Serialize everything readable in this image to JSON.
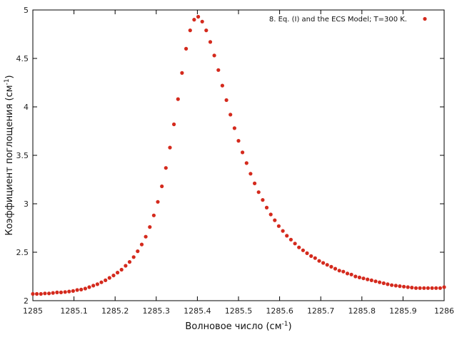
{
  "chart_data": {
    "type": "scatter",
    "xlabel": {
      "main": "Волновое число (см",
      "sup": "-1",
      "close": ")"
    },
    "ylabel": {
      "main": "Коэффициент поглощения (см",
      "sup": "-1",
      "close": ")"
    },
    "xlim": [
      1285,
      1286
    ],
    "ylim": [
      2,
      5
    ],
    "xticks": [
      "1285",
      "1285.1",
      "1285.2",
      "1285.3",
      "1285.4",
      "1285.5",
      "1285.6",
      "1285.7",
      "1285.8",
      "1285.9",
      "1286"
    ],
    "yticks": [
      "2",
      "2.5",
      "3",
      "3.5",
      "4",
      "4.5",
      "5"
    ],
    "legend_position": "top-right",
    "grid": false,
    "series": [
      {
        "name": "8. Eq. (I) and the ECS Model; T=300 K.",
        "color": "#d42a1d",
        "x": [
          1285.0,
          1285.0098,
          1285.0196,
          1285.0294,
          1285.0392,
          1285.049,
          1285.0588,
          1285.0686,
          1285.0784,
          1285.0882,
          1285.098,
          1285.1078,
          1285.1176,
          1285.1274,
          1285.1372,
          1285.147,
          1285.1569,
          1285.1667,
          1285.1765,
          1285.1863,
          1285.1961,
          1285.2059,
          1285.2157,
          1285.2255,
          1285.2353,
          1285.2451,
          1285.2549,
          1285.2647,
          1285.2745,
          1285.2843,
          1285.2941,
          1285.3039,
          1285.3137,
          1285.3235,
          1285.3333,
          1285.3431,
          1285.3529,
          1285.3627,
          1285.3725,
          1285.3824,
          1285.3922,
          1285.402,
          1285.4118,
          1285.4216,
          1285.4314,
          1285.4412,
          1285.451,
          1285.4608,
          1285.4706,
          1285.4804,
          1285.4902,
          1285.5,
          1285.5098,
          1285.5196,
          1285.5294,
          1285.5392,
          1285.549,
          1285.5588,
          1285.5686,
          1285.5784,
          1285.5882,
          1285.598,
          1285.6078,
          1285.6176,
          1285.6275,
          1285.6373,
          1285.6471,
          1285.6569,
          1285.6667,
          1285.6765,
          1285.6863,
          1285.6961,
          1285.7059,
          1285.7157,
          1285.7255,
          1285.7353,
          1285.7451,
          1285.7549,
          1285.7647,
          1285.7745,
          1285.7843,
          1285.7941,
          1285.8039,
          1285.8137,
          1285.8235,
          1285.8333,
          1285.8431,
          1285.8529,
          1285.8627,
          1285.8725,
          1285.8824,
          1285.8922,
          1285.902,
          1285.9118,
          1285.9216,
          1285.9314,
          1285.9412,
          1285.951,
          1285.9608,
          1285.9706,
          1285.9804,
          1285.9902,
          1286.0
        ],
        "y": [
          2.07,
          2.07,
          2.07,
          2.075,
          2.075,
          2.08,
          2.085,
          2.085,
          2.09,
          2.095,
          2.1,
          2.11,
          2.115,
          2.125,
          2.14,
          2.155,
          2.17,
          2.19,
          2.21,
          2.235,
          2.26,
          2.29,
          2.32,
          2.36,
          2.4,
          2.45,
          2.51,
          2.58,
          2.66,
          2.76,
          2.88,
          3.02,
          3.18,
          3.37,
          3.58,
          3.82,
          4.08,
          4.35,
          4.6,
          4.79,
          4.9,
          4.93,
          4.88,
          4.79,
          4.67,
          4.53,
          4.38,
          4.22,
          4.07,
          3.92,
          3.78,
          3.65,
          3.53,
          3.42,
          3.31,
          3.21,
          3.12,
          3.04,
          2.96,
          2.89,
          2.83,
          2.77,
          2.72,
          2.67,
          2.63,
          2.59,
          2.55,
          2.52,
          2.49,
          2.46,
          2.44,
          2.41,
          2.39,
          2.37,
          2.35,
          2.33,
          2.31,
          2.3,
          2.28,
          2.27,
          2.25,
          2.24,
          2.23,
          2.22,
          2.21,
          2.2,
          2.19,
          2.18,
          2.17,
          2.16,
          2.155,
          2.15,
          2.145,
          2.14,
          2.135,
          2.13,
          2.13,
          2.13,
          2.13,
          2.13,
          2.13,
          2.13,
          2.14
        ]
      }
    ]
  }
}
